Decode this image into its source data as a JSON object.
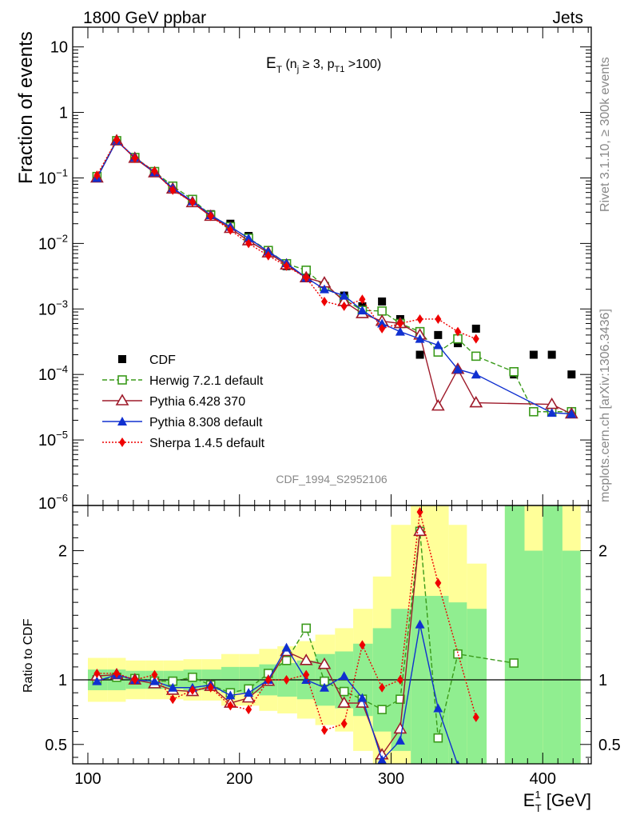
{
  "header": {
    "left": "1800 GeV ppbar",
    "right": "Jets"
  },
  "side_labels": {
    "rivet": "Rivet 3.1.10, ≥ 300k events",
    "mcplots": "mcplots.cern.ch [arXiv:1306.3436]"
  },
  "analysis_id": "CDF_1994_S2952106",
  "colors": {
    "cdf": "#000000",
    "herwig": "#3a9a1a",
    "pythia6": "#9e1a2a",
    "pythia8": "#1030d0",
    "sherpa": "#ee0000",
    "band_inner": "#90ee90",
    "band_outer": "#ffff99"
  },
  "chart_data": [
    {
      "type": "line",
      "panel": "main",
      "title": "E_T (n_j ≥ 3, p_T1 >100)",
      "title_parts": {
        "main": "E",
        "sub": "T",
        "rest": " (n",
        "sub2": "j",
        "rest2": " ≥ 3, p",
        "sub3": "T1",
        "rest3": " >100)"
      },
      "ylabel": "Fraction of events",
      "yscale": "log",
      "ylim": [
        1e-06,
        20
      ],
      "xlim": [
        90,
        432
      ],
      "ytick_labels": [
        {
          "base": "10",
          "exp": "",
          "val": 10
        },
        {
          "base": "1",
          "exp": "",
          "val": 1
        },
        {
          "base": "10",
          "exp": "−1",
          "val": 0.1
        },
        {
          "base": "10",
          "exp": "−2",
          "val": 0.01
        },
        {
          "base": "10",
          "exp": "−3",
          "val": 0.001
        },
        {
          "base": "10",
          "exp": "−4",
          "val": 0.0001
        },
        {
          "base": "10",
          "exp": "−5",
          "val": 1e-05
        },
        {
          "base": "10",
          "exp": "−6",
          "val": 1e-06
        }
      ],
      "legend_position": "lower-left",
      "series": [
        {
          "name": "CDF",
          "key": "cdf",
          "x": [
            106,
            119,
            131,
            144,
            156,
            169,
            181,
            194,
            206,
            219,
            231,
            244,
            256,
            269,
            281,
            294,
            306,
            319,
            331,
            344,
            356,
            381,
            394,
            406,
            419
          ],
          "y": [
            0.105,
            0.37,
            0.205,
            0.125,
            0.075,
            0.047,
            0.028,
            0.02,
            0.013,
            0.0075,
            0.0045,
            0.0032,
            0.0022,
            0.0016,
            0.0011,
            0.0013,
            0.0007,
            0.0002,
            0.0004,
            0.0003,
            0.0005,
            0.0001,
            0.0002,
            0.0002,
            0.0001
          ]
        },
        {
          "name": "Herwig 7.2.1 default",
          "key": "herwig",
          "x": [
            106,
            119,
            131,
            144,
            156,
            169,
            181,
            194,
            206,
            219,
            231,
            244,
            256,
            269,
            281,
            294,
            306,
            319,
            331,
            344,
            356,
            381,
            394,
            406,
            419
          ],
          "y": [
            0.105,
            0.37,
            0.205,
            0.125,
            0.075,
            0.047,
            0.027,
            0.018,
            0.012,
            0.0078,
            0.0049,
            0.0039,
            0.0022,
            0.0014,
            0.00095,
            0.00093,
            0.0006,
            0.00045,
            0.00022,
            0.00035,
            0.00019,
            0.00011,
            2.7e-05,
            2.7e-05,
            2.7e-05
          ]
        },
        {
          "name": "Pythia 6.428 370",
          "key": "pythia6",
          "x": [
            106,
            119,
            131,
            144,
            156,
            169,
            181,
            194,
            206,
            219,
            231,
            244,
            256,
            269,
            281,
            294,
            306,
            319,
            331,
            344,
            356,
            406,
            419
          ],
          "y": [
            0.1,
            0.37,
            0.2,
            0.12,
            0.068,
            0.042,
            0.026,
            0.017,
            0.011,
            0.0072,
            0.0047,
            0.003,
            0.0025,
            0.0013,
            0.00085,
            0.00065,
            0.0006,
            0.0004,
            3.3e-05,
            0.00012,
            3.7e-05,
            3.5e-05,
            2.5e-05
          ]
        },
        {
          "name": "Pythia 8.308 default",
          "key": "pythia8",
          "x": [
            106,
            119,
            131,
            144,
            156,
            169,
            181,
            194,
            206,
            219,
            231,
            244,
            256,
            269,
            281,
            294,
            306,
            319,
            331,
            344,
            356,
            406,
            419
          ],
          "y": [
            0.1,
            0.37,
            0.205,
            0.122,
            0.07,
            0.044,
            0.027,
            0.018,
            0.012,
            0.0075,
            0.005,
            0.003,
            0.002,
            0.0016,
            0.00095,
            0.0006,
            0.00045,
            0.00035,
            0.00028,
            0.00012,
            0.0001,
            2.6e-05,
            2.5e-05
          ]
        },
        {
          "name": "Sherpa 1.4.5 default",
          "key": "sherpa",
          "x": [
            106,
            119,
            131,
            144,
            156,
            169,
            181,
            194,
            206,
            219,
            231,
            244,
            256,
            269,
            281,
            294,
            306,
            319,
            331,
            344,
            356
          ],
          "y": [
            0.11,
            0.38,
            0.2,
            0.127,
            0.065,
            0.043,
            0.026,
            0.016,
            0.01,
            0.0065,
            0.0045,
            0.003,
            0.0013,
            0.0011,
            0.0014,
            0.0005,
            0.0006,
            0.0007,
            0.0007,
            0.00045,
            0.00035
          ]
        }
      ]
    },
    {
      "type": "line",
      "panel": "ratio",
      "ylabel": "Ratio to CDF",
      "xlabel_parts": {
        "main": "E",
        "sup": "1",
        "sub": "T",
        "rest": " [GeV]"
      },
      "ylim": [
        0.35,
        2.35
      ],
      "xlim": [
        90,
        432
      ],
      "yticks": [
        0.5,
        1,
        2
      ],
      "xticks": [
        100,
        200,
        300,
        400
      ],
      "bands": {
        "edges": [
          100,
          113,
          125,
          138,
          150,
          163,
          175,
          188,
          200,
          213,
          225,
          238,
          250,
          263,
          275,
          288,
          300,
          313,
          325,
          338,
          350,
          363,
          375,
          388,
          400,
          413,
          425
        ],
        "inner_lo": [
          0.92,
          0.92,
          0.93,
          0.93,
          0.93,
          0.92,
          0.92,
          0.9,
          0.9,
          0.88,
          0.87,
          0.85,
          0.8,
          0.78,
          0.72,
          0.6,
          0.45,
          0.35,
          0.35,
          0.35,
          0.35,
          0.0,
          0.35,
          0.35,
          0.35,
          0.35
        ],
        "inner_hi": [
          1.08,
          1.08,
          1.07,
          1.07,
          1.07,
          1.08,
          1.08,
          1.1,
          1.1,
          1.12,
          1.13,
          1.15,
          1.2,
          1.22,
          1.28,
          1.4,
          1.55,
          1.65,
          1.65,
          1.6,
          1.55,
          0.0,
          2.35,
          2.0,
          2.35,
          2.0
        ],
        "outer_lo": [
          0.83,
          0.83,
          0.85,
          0.85,
          0.85,
          0.84,
          0.84,
          0.8,
          0.8,
          0.76,
          0.74,
          0.7,
          0.65,
          0.6,
          0.45,
          0.35,
          0.35,
          0.35,
          0.35,
          0.35,
          0.35,
          0.0,
          0.35,
          0.35,
          0.35,
          0.35
        ],
        "outer_hi": [
          1.17,
          1.17,
          1.15,
          1.15,
          1.15,
          1.16,
          1.16,
          1.2,
          1.2,
          1.24,
          1.26,
          1.3,
          1.35,
          1.4,
          1.55,
          1.8,
          2.2,
          2.35,
          2.35,
          2.2,
          1.9,
          0.0,
          2.35,
          2.35,
          2.35,
          2.35
        ]
      },
      "series": [
        {
          "name": "Herwig 7.2.1 default",
          "key": "herwig",
          "x": [
            106,
            119,
            131,
            144,
            156,
            169,
            181,
            194,
            206,
            219,
            231,
            244,
            256,
            269,
            281,
            294,
            306,
            319,
            331,
            344,
            381
          ],
          "y": [
            1.0,
            1.02,
            1.01,
            0.99,
            0.99,
            1.02,
            0.96,
            0.9,
            0.93,
            1.05,
            1.15,
            1.4,
            0.99,
            0.91,
            0.85,
            0.77,
            0.85,
            2.15,
            0.55,
            1.2,
            1.13
          ]
        },
        {
          "name": "Pythia 6.428 370",
          "key": "pythia6",
          "x": [
            106,
            119,
            131,
            144,
            156,
            169,
            181,
            194,
            206,
            219,
            231,
            244,
            256,
            269,
            281,
            294,
            306,
            319
          ],
          "y": [
            1.03,
            1.04,
            1.0,
            0.97,
            0.92,
            0.91,
            0.95,
            0.82,
            0.86,
            0.99,
            1.22,
            1.15,
            1.12,
            0.82,
            0.82,
            0.42,
            0.62,
            2.15
          ]
        },
        {
          "name": "Pythia 8.308 default",
          "key": "pythia8",
          "x": [
            106,
            119,
            131,
            144,
            156,
            169,
            181,
            194,
            206,
            219,
            231,
            244,
            256,
            269,
            281,
            294,
            306,
            319,
            331,
            344
          ],
          "y": [
            0.99,
            1.04,
            1.0,
            0.99,
            0.94,
            0.94,
            0.96,
            0.88,
            0.9,
            1.0,
            1.25,
            1.0,
            0.94,
            1.03,
            0.86,
            0.38,
            0.53,
            1.43,
            0.78,
            0.34
          ]
        },
        {
          "name": "Sherpa 1.4.5 default",
          "key": "sherpa",
          "x": [
            106,
            119,
            131,
            144,
            156,
            169,
            181,
            194,
            206,
            219,
            231,
            244,
            256,
            269,
            281,
            294,
            306,
            319,
            331,
            356
          ],
          "y": [
            1.05,
            1.05,
            1.0,
            1.04,
            0.85,
            0.92,
            0.94,
            0.8,
            0.77,
            1.0,
            1.0,
            1.04,
            0.61,
            0.66,
            1.27,
            0.94,
            1.0,
            2.3,
            1.75,
            0.71
          ]
        }
      ]
    }
  ],
  "x_tick_labels": [
    "100",
    "200",
    "300",
    "400"
  ],
  "ratio_tick_labels": [
    "2",
    "1",
    "0.5"
  ]
}
